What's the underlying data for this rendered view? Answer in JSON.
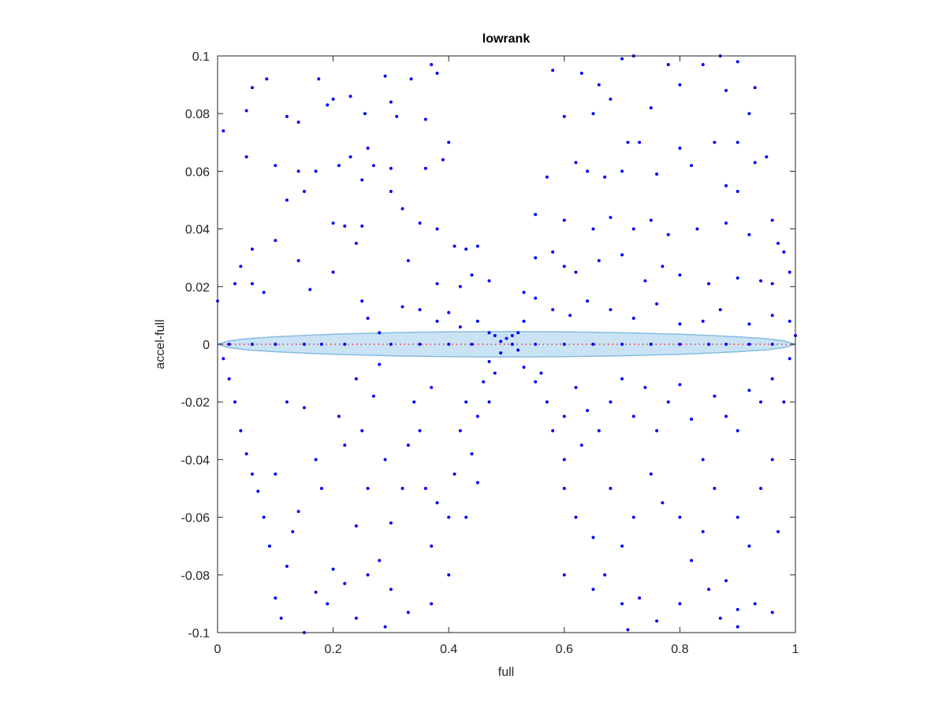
{
  "chart_data": {
    "type": "scatter",
    "title": "lowrank",
    "xlabel": "full",
    "ylabel": "accel-full",
    "xlim": [
      0,
      1
    ],
    "ylim": [
      -0.1,
      0.1
    ],
    "xticks": [
      0,
      0.2,
      0.4,
      0.6,
      0.8,
      1
    ],
    "yticks": [
      -0.1,
      -0.08,
      -0.06,
      -0.04,
      -0.02,
      0,
      0.02,
      0.04,
      0.06,
      0.08,
      0.1
    ],
    "grid": false,
    "series": [
      {
        "type": "band",
        "color": "#c9e3f5",
        "edge_color": "#86bbe0",
        "x": [
          0,
          0.02,
          0.05,
          0.1,
          0.2,
          0.3,
          0.4,
          0.5,
          0.6,
          0.7,
          0.8,
          0.9,
          0.95,
          0.98,
          1
        ],
        "upper": [
          0,
          0.0012,
          0.0019,
          0.0026,
          0.0035,
          0.004,
          0.0043,
          0.0044,
          0.0043,
          0.004,
          0.0035,
          0.0026,
          0.0019,
          0.0012,
          0
        ],
        "lower": [
          0,
          -0.0012,
          -0.0019,
          -0.0026,
          -0.0035,
          -0.004,
          -0.0043,
          -0.0044,
          -0.0043,
          -0.004,
          -0.0035,
          -0.0026,
          -0.0019,
          -0.0012,
          0
        ]
      },
      {
        "type": "line",
        "color": "#ff0000",
        "x": [
          0,
          1
        ],
        "values": [
          0,
          0
        ]
      },
      {
        "type": "scatter",
        "color": "#0000ff",
        "x": [
          0.01,
          0.05,
          0.06,
          0.085,
          0.05,
          0.12,
          0.14,
          0.175,
          0.19,
          0.2,
          0.23,
          0.255,
          0.26,
          0.27,
          0.25,
          0.29,
          0.3,
          0.31,
          0.335,
          0.36,
          0.37,
          0.38,
          0.36,
          0.39,
          0.4,
          0.35,
          0.38,
          0.3,
          0.23,
          0.21,
          0.17,
          0.14,
          0.1,
          0.12,
          0.15,
          0.2,
          0.22,
          0.25,
          0.3,
          0.32,
          0.33,
          0.41,
          0.43,
          0.45,
          0.38,
          0.42,
          0.44,
          0.47,
          0.1,
          0.06,
          0.04,
          0.03,
          0.06,
          0.0,
          0.08,
          0.14,
          0.2,
          0.24,
          0.16,
          0.25,
          0.26,
          0.28,
          0.32,
          0.35,
          0.38,
          0.4,
          0.42,
          0.45,
          0.47,
          0.48,
          0.49,
          0.5,
          0.51,
          0.52,
          0.49,
          0.47,
          0.58,
          0.63,
          0.66,
          0.7,
          0.72,
          0.78,
          0.84,
          0.87,
          0.9,
          0.93,
          0.92,
          0.88,
          0.8,
          0.75,
          0.68,
          0.6,
          0.65,
          0.71,
          0.73,
          0.8,
          0.86,
          0.9,
          0.93,
          0.95,
          0.62,
          0.64,
          0.67,
          0.7,
          0.76,
          0.82,
          0.88,
          0.9,
          0.57,
          0.55,
          0.6,
          0.65,
          0.68,
          0.72,
          0.75,
          0.78,
          0.83,
          0.88,
          0.92,
          0.96,
          0.97,
          0.98,
          0.99,
          0.55,
          0.58,
          0.6,
          0.62,
          0.66,
          0.7,
          0.74,
          0.77,
          0.8,
          0.85,
          0.9,
          0.94,
          0.96,
          0.53,
          0.55,
          0.58,
          0.61,
          0.64,
          0.68,
          0.72,
          0.76,
          0.8,
          0.84,
          0.87,
          0.92,
          0.96,
          0.99,
          1.0,
          0.53,
          0.52,
          0.51,
          0.01,
          0.02,
          0.03,
          0.04,
          0.05,
          0.06,
          0.07,
          0.08,
          0.09,
          0.1,
          0.11,
          0.12,
          0.13,
          0.14,
          0.1,
          0.12,
          0.15,
          0.17,
          0.18,
          0.17,
          0.19,
          0.22,
          0.24,
          0.26,
          0.22,
          0.21,
          0.24,
          0.25,
          0.27,
          0.28,
          0.29,
          0.3,
          0.28,
          0.26,
          0.24,
          0.29,
          0.3,
          0.32,
          0.33,
          0.34,
          0.35,
          0.37,
          0.36,
          0.38,
          0.37,
          0.4,
          0.4,
          0.41,
          0.42,
          0.43,
          0.44,
          0.45,
          0.46,
          0.48,
          0.47,
          0.43,
          0.45,
          0.37,
          0.33,
          0.2,
          0.15,
          0.53,
          0.55,
          0.57,
          0.56,
          0.58,
          0.6,
          0.62,
          0.64,
          0.6,
          0.63,
          0.66,
          0.68,
          0.7,
          0.72,
          0.74,
          0.76,
          0.78,
          0.8,
          0.82,
          0.84,
          0.86,
          0.88,
          0.9,
          0.92,
          0.94,
          0.96,
          0.98,
          0.99,
          0.6,
          0.62,
          0.65,
          0.67,
          0.68,
          0.7,
          0.72,
          0.75,
          0.77,
          0.8,
          0.82,
          0.84,
          0.86,
          0.88,
          0.9,
          0.92,
          0.94,
          0.96,
          0.97,
          0.6,
          0.65,
          0.7,
          0.73,
          0.76,
          0.8,
          0.85,
          0.87,
          0.9,
          0.93,
          0.96,
          0.71,
          0.9,
          0.02,
          0.06,
          0.1,
          0.15,
          0.18,
          0.22,
          0.3,
          0.35,
          0.4,
          0.44,
          0.55,
          0.6,
          0.65,
          0.7,
          0.75,
          0.8,
          0.85,
          0.88,
          0.92,
          0.96
        ],
        "values": [
          0.074,
          0.081,
          0.089,
          0.092,
          0.065,
          0.079,
          0.077,
          0.092,
          0.083,
          0.085,
          0.086,
          0.08,
          0.068,
          0.062,
          0.057,
          0.093,
          0.084,
          0.079,
          0.092,
          0.078,
          0.097,
          0.094,
          0.061,
          0.064,
          0.07,
          0.042,
          0.04,
          0.061,
          0.065,
          0.062,
          0.06,
          0.06,
          0.062,
          0.05,
          0.053,
          0.042,
          0.041,
          0.041,
          0.053,
          0.047,
          0.029,
          0.034,
          0.033,
          0.034,
          0.021,
          0.02,
          0.024,
          0.022,
          0.036,
          0.033,
          0.027,
          0.021,
          0.021,
          0.015,
          0.018,
          0.029,
          0.025,
          0.035,
          0.019,
          0.015,
          0.009,
          0.004,
          0.013,
          0.012,
          0.008,
          0.011,
          0.006,
          0.008,
          0.004,
          0.003,
          0.001,
          0.002,
          0.0,
          -0.002,
          -0.003,
          -0.006,
          0.095,
          0.094,
          0.09,
          0.099,
          0.1,
          0.097,
          0.097,
          0.1,
          0.098,
          0.089,
          0.08,
          0.088,
          0.09,
          0.082,
          0.085,
          0.079,
          0.08,
          0.07,
          0.07,
          0.068,
          0.07,
          0.07,
          0.063,
          0.065,
          0.063,
          0.06,
          0.058,
          0.06,
          0.059,
          0.062,
          0.055,
          0.053,
          0.058,
          0.045,
          0.043,
          0.04,
          0.044,
          0.04,
          0.043,
          0.038,
          0.04,
          0.042,
          0.038,
          0.043,
          0.035,
          0.032,
          0.025,
          0.03,
          0.032,
          0.027,
          0.025,
          0.029,
          0.031,
          0.022,
          0.027,
          0.024,
          0.021,
          0.023,
          0.022,
          0.021,
          0.018,
          0.016,
          0.012,
          0.01,
          0.015,
          0.012,
          0.009,
          0.014,
          0.007,
          0.008,
          0.012,
          0.007,
          0.01,
          0.008,
          0.003,
          0.008,
          0.004,
          0.003,
          -0.005,
          -0.012,
          -0.02,
          -0.03,
          -0.038,
          -0.045,
          -0.051,
          -0.06,
          -0.07,
          -0.088,
          -0.095,
          -0.077,
          -0.065,
          -0.058,
          -0.045,
          -0.02,
          -0.022,
          -0.04,
          -0.05,
          -0.086,
          -0.09,
          -0.083,
          -0.063,
          -0.05,
          -0.035,
          -0.025,
          -0.012,
          -0.03,
          -0.018,
          -0.007,
          -0.04,
          -0.062,
          -0.075,
          -0.08,
          -0.095,
          -0.098,
          -0.085,
          -0.05,
          -0.035,
          -0.02,
          -0.03,
          -0.015,
          -0.05,
          -0.055,
          -0.07,
          -0.08,
          -0.06,
          -0.045,
          -0.03,
          -0.02,
          -0.038,
          -0.025,
          -0.013,
          -0.01,
          -0.02,
          -0.06,
          -0.048,
          -0.09,
          -0.093,
          -0.078,
          -0.1,
          -0.008,
          -0.013,
          -0.02,
          -0.01,
          -0.03,
          -0.025,
          -0.015,
          -0.023,
          -0.04,
          -0.035,
          -0.03,
          -0.02,
          -0.012,
          -0.025,
          -0.015,
          -0.03,
          -0.02,
          -0.014,
          -0.026,
          -0.04,
          -0.018,
          -0.025,
          -0.03,
          -0.016,
          -0.02,
          -0.012,
          -0.02,
          -0.005,
          -0.05,
          -0.06,
          -0.067,
          -0.08,
          -0.05,
          -0.07,
          -0.06,
          -0.045,
          -0.055,
          -0.06,
          -0.075,
          -0.065,
          -0.05,
          -0.082,
          -0.06,
          -0.07,
          -0.05,
          -0.04,
          -0.065,
          -0.08,
          -0.085,
          -0.09,
          -0.088,
          -0.096,
          -0.09,
          -0.085,
          -0.095,
          -0.092,
          -0.09,
          -0.093,
          -0.099,
          -0.098,
          0,
          0,
          0,
          0,
          0,
          0,
          0,
          0,
          0,
          0,
          0,
          0,
          0,
          0,
          0,
          0,
          0,
          0,
          0,
          0
        ]
      }
    ]
  }
}
